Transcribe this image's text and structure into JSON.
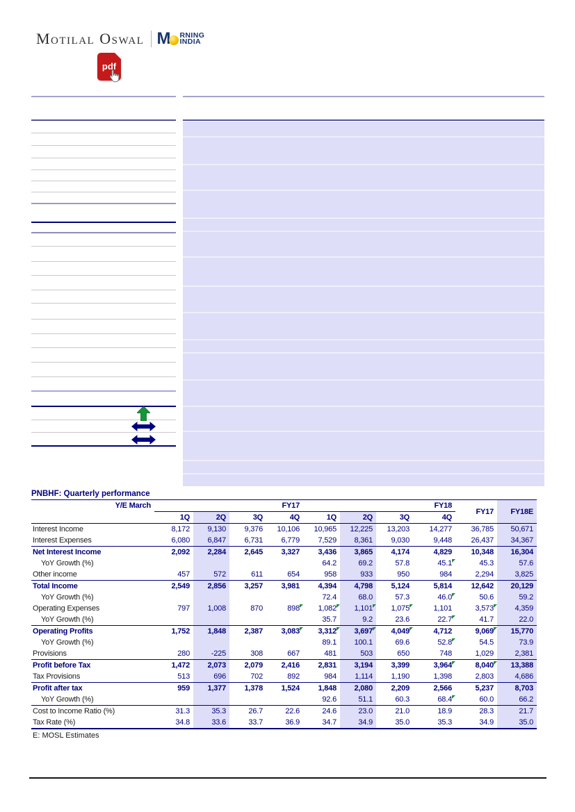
{
  "colors": {
    "navy": "#00007b",
    "lavender": "#dfdef8",
    "brand_blue": "#17356b",
    "logo_gold": "#f4c400",
    "pdf_red": "#c41a1b",
    "flag_green": "#1f8a3c"
  },
  "logo": {
    "brand": "Motilal Oswal",
    "morning_m": "M",
    "morning_top": "RNING",
    "morning_bottom": "INDIA",
    "pdf_icon_label": "pdf"
  },
  "table": {
    "title": "PNBHF: Quarterly performance",
    "header": {
      "row_label": "Y/E March",
      "groups": [
        {
          "label": "FY17",
          "span": 4
        },
        {
          "label": "FY18",
          "span": 4
        }
      ],
      "quarters": [
        "1Q",
        "2Q",
        "3Q",
        "4Q",
        "1Q",
        "2Q",
        "3Q",
        "4Q"
      ],
      "annual": [
        "FY17",
        "FY18E"
      ]
    },
    "rows": [
      {
        "label": "Interest Income",
        "type": "normal",
        "values": [
          "8,172",
          "9,130",
          "9,376",
          "10,106",
          "10,965",
          "12,225",
          "13,203",
          "14,277",
          "36,785",
          "50,671"
        ]
      },
      {
        "label": "Interest Expenses",
        "type": "normal",
        "values": [
          "6,080",
          "6,847",
          "6,731",
          "6,779",
          "7,529",
          "8,361",
          "9,030",
          "9,448",
          "26,437",
          "34,367"
        ]
      },
      {
        "label": "Net Interest Income",
        "type": "section",
        "values": [
          "2,092",
          "2,284",
          "2,645",
          "3,327",
          "3,436",
          "3,865",
          "4,174",
          "4,829",
          "10,348",
          "16,304"
        ]
      },
      {
        "label": "YoY Growth (%)",
        "type": "indent",
        "values": [
          "",
          "",
          "",
          "",
          "64.2",
          "69.2",
          "57.8",
          "45.1",
          "45.3",
          "57.6"
        ],
        "flags": [
          7
        ]
      },
      {
        "label": "Other income",
        "type": "normal",
        "values": [
          "457",
          "572",
          "611",
          "654",
          "958",
          "933",
          "950",
          "984",
          "2,294",
          "3,825"
        ]
      },
      {
        "label": "Total Income",
        "type": "section",
        "values": [
          "2,549",
          "2,856",
          "3,257",
          "3,981",
          "4,394",
          "4,798",
          "5,124",
          "5,814",
          "12,642",
          "20,129"
        ]
      },
      {
        "label": "YoY Growth (%)",
        "type": "indent",
        "values": [
          "",
          "",
          "",
          "",
          "72.4",
          "68.0",
          "57.3",
          "46.0",
          "50.6",
          "59.2"
        ],
        "flags": [
          7
        ]
      },
      {
        "label": "Operating Expenses",
        "type": "normal",
        "values": [
          "797",
          "1,008",
          "870",
          "898",
          "1,082",
          "1,101",
          "1,075",
          "1,101",
          "3,573",
          "4,359"
        ],
        "flags": [
          3,
          4,
          5,
          6,
          8
        ]
      },
      {
        "label": "YoY Growth (%)",
        "type": "indent",
        "values": [
          "",
          "",
          "",
          "",
          "35.7",
          "9.2",
          "23.6",
          "22.7",
          "41.7",
          "22.0"
        ],
        "flags": [
          7
        ]
      },
      {
        "label": "Operating Profits",
        "type": "section",
        "values": [
          "1,752",
          "1,848",
          "2,387",
          "3,083",
          "3,312",
          "3,697",
          "4,049",
          "4,712",
          "9,069",
          "15,770"
        ],
        "flags": [
          3,
          4,
          5,
          6,
          8
        ]
      },
      {
        "label": "YoY Growth (%)",
        "type": "indent",
        "values": [
          "",
          "",
          "",
          "",
          "89.1",
          "100.1",
          "69.6",
          "52.8",
          "54.5",
          "73.9"
        ],
        "flags": [
          7
        ]
      },
      {
        "label": "Provisions",
        "type": "normal",
        "values": [
          "280",
          "-225",
          "308",
          "667",
          "481",
          "503",
          "650",
          "748",
          "1,029",
          "2,381"
        ]
      },
      {
        "label": "Profit before Tax",
        "type": "section",
        "values": [
          "1,472",
          "2,073",
          "2,079",
          "2,416",
          "2,831",
          "3,194",
          "3,399",
          "3,964",
          "8,040",
          "13,388"
        ],
        "flags": [
          7,
          8
        ]
      },
      {
        "label": "Tax Provisions",
        "type": "normal",
        "values": [
          "513",
          "696",
          "702",
          "892",
          "984",
          "1,114",
          "1,190",
          "1,398",
          "2,803",
          "4,686"
        ]
      },
      {
        "label": "Profit after tax",
        "type": "section",
        "values": [
          "959",
          "1,377",
          "1,378",
          "1,524",
          "1,848",
          "2,080",
          "2,209",
          "2,566",
          "5,237",
          "8,703"
        ]
      },
      {
        "label": "YoY Growth (%)",
        "type": "indent",
        "values": [
          "",
          "",
          "",
          "",
          "92.6",
          "51.1",
          "60.3",
          "68.4",
          "60.0",
          "66.2"
        ],
        "flags": [
          7
        ]
      },
      {
        "label": "Cost to Income Ratio (%)",
        "type": "rule",
        "values": [
          "31.3",
          "35.3",
          "26.7",
          "22.6",
          "24.6",
          "23.0",
          "21.0",
          "18.9",
          "28.3",
          "21.7"
        ]
      },
      {
        "label": "Tax Rate (%)",
        "type": "normal",
        "values": [
          "34.8",
          "33.6",
          "33.7",
          "36.9",
          "34.7",
          "34.9",
          "35.0",
          "35.3",
          "34.9",
          "35.0"
        ]
      }
    ],
    "footnote": "E: MOSL Estimates"
  }
}
